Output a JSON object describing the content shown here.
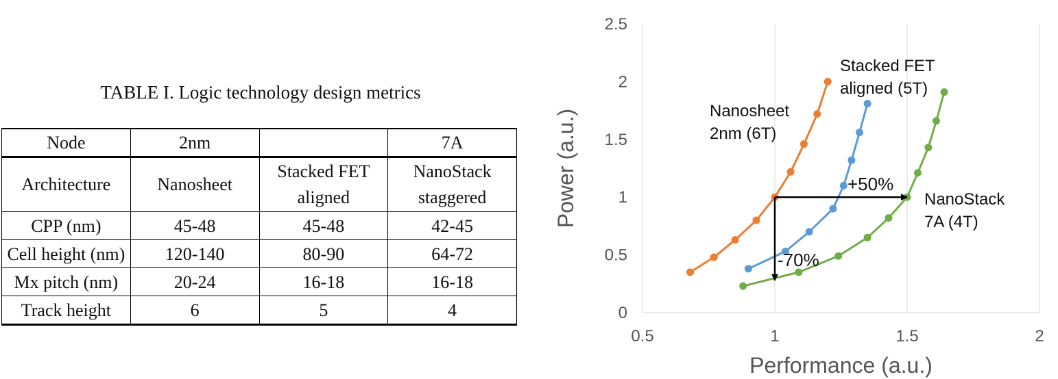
{
  "table": {
    "title": "TABLE I. Logic technology design metrics",
    "header": [
      "Node",
      "2nm",
      "",
      "7A"
    ],
    "architecture": {
      "label": "Architecture",
      "values": [
        [
          "Nanosheet"
        ],
        [
          "Stacked FET",
          "aligned"
        ],
        [
          "NanoStack",
          "staggered"
        ]
      ]
    },
    "rows": [
      {
        "label": "CPP (nm)",
        "values": [
          "45-48",
          "45-48",
          "42-45"
        ]
      },
      {
        "label": "Cell height (nm)",
        "values": [
          "120-140",
          "80-90",
          "64-72"
        ]
      },
      {
        "label": "Mx pitch (nm)",
        "values": [
          "20-24",
          "16-18",
          "16-18"
        ]
      },
      {
        "label": "Track height",
        "values": [
          "6",
          "5",
          "4"
        ]
      }
    ]
  },
  "chart_data": {
    "type": "line",
    "xlabel": "Performance (a.u.)",
    "ylabel": "Power (a.u.)",
    "xlim": [
      0.5,
      2
    ],
    "ylim": [
      0,
      2.5
    ],
    "xticks": [
      "0.5",
      "1",
      "1.5",
      "2"
    ],
    "yticks": [
      "0",
      "0.5",
      "1",
      "1.5",
      "2",
      "2.5"
    ],
    "grid": "vertical",
    "legend": "none",
    "series": [
      {
        "name_lines": [
          "Nanosheet",
          "2nm (6T)"
        ],
        "color": "#ED7D31",
        "x": [
          0.68,
          0.77,
          0.85,
          0.93,
          1.0,
          1.06,
          1.11,
          1.16,
          1.2
        ],
        "y": [
          0.35,
          0.48,
          0.63,
          0.8,
          1.0,
          1.22,
          1.46,
          1.72,
          2.0
        ]
      },
      {
        "name_lines": [
          "Stacked FET",
          "aligned  (5T)"
        ],
        "color": "#5B9BD5",
        "x": [
          0.9,
          1.04,
          1.13,
          1.22,
          1.26,
          1.29,
          1.32,
          1.35
        ],
        "y": [
          0.38,
          0.53,
          0.7,
          0.9,
          1.1,
          1.32,
          1.56,
          1.81
        ]
      },
      {
        "name_lines": [
          "NanoStack",
          "7A (4T)"
        ],
        "color": "#70AD47",
        "x": [
          0.88,
          1.09,
          1.24,
          1.35,
          1.43,
          1.5,
          1.54,
          1.58,
          1.61,
          1.64
        ],
        "y": [
          0.23,
          0.35,
          0.49,
          0.65,
          0.82,
          1.0,
          1.21,
          1.43,
          1.66,
          1.91
        ]
      }
    ],
    "annotations": [
      {
        "text": "+50%",
        "from": [
          1.0,
          1.0
        ],
        "to": [
          1.5,
          1.0
        ]
      },
      {
        "text": "-70%",
        "from": [
          1.0,
          1.0
        ],
        "to": [
          1.0,
          0.28
        ]
      }
    ]
  }
}
